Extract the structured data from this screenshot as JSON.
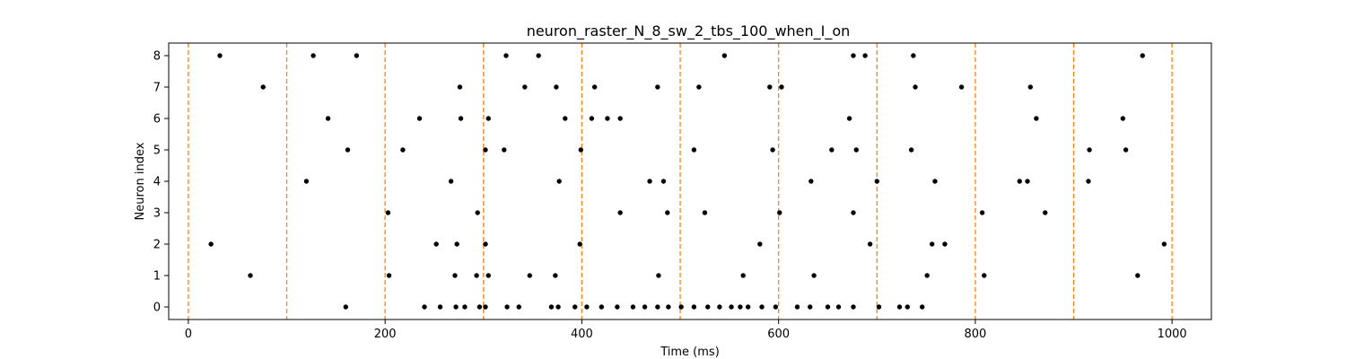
{
  "chart_data": {
    "type": "scatter",
    "title": "neuron_raster_N_8_sw_2_tbs_100_when_I_on",
    "xlabel": "Time (ms)",
    "ylabel": "Neuron index",
    "xlim": [
      -20,
      1040
    ],
    "ylim": [
      -0.4,
      8.4
    ],
    "xticks": [
      0,
      200,
      400,
      600,
      800,
      1000
    ],
    "yticks": [
      0,
      1,
      2,
      3,
      4,
      5,
      6,
      7,
      8
    ],
    "grid": false,
    "marker_color": "#000000",
    "vline_color": "#ff7f0e",
    "vlines": [
      0,
      100,
      200,
      300,
      400,
      500,
      600,
      700,
      800,
      900,
      1000
    ],
    "series": [
      {
        "values": [
          {
            "x": 160,
            "y": 0
          },
          {
            "x": 240,
            "y": 0
          },
          {
            "x": 256,
            "y": 0
          },
          {
            "x": 272,
            "y": 0
          },
          {
            "x": 281,
            "y": 0
          },
          {
            "x": 296,
            "y": 0
          },
          {
            "x": 302,
            "y": 0
          },
          {
            "x": 324,
            "y": 0
          },
          {
            "x": 336,
            "y": 0
          },
          {
            "x": 369,
            "y": 0
          },
          {
            "x": 376,
            "y": 0
          },
          {
            "x": 393,
            "y": 0
          },
          {
            "x": 405,
            "y": 0
          },
          {
            "x": 420,
            "y": 0
          },
          {
            "x": 436,
            "y": 0
          },
          {
            "x": 452,
            "y": 0
          },
          {
            "x": 464,
            "y": 0
          },
          {
            "x": 477,
            "y": 0
          },
          {
            "x": 488,
            "y": 0
          },
          {
            "x": 501,
            "y": 0
          },
          {
            "x": 514,
            "y": 0
          },
          {
            "x": 528,
            "y": 0
          },
          {
            "x": 540,
            "y": 0
          },
          {
            "x": 552,
            "y": 0
          },
          {
            "x": 561,
            "y": 0
          },
          {
            "x": 569,
            "y": 0
          },
          {
            "x": 583,
            "y": 0
          },
          {
            "x": 597,
            "y": 0
          },
          {
            "x": 619,
            "y": 0
          },
          {
            "x": 632,
            "y": 0
          },
          {
            "x": 650,
            "y": 0
          },
          {
            "x": 661,
            "y": 0
          },
          {
            "x": 676,
            "y": 0
          },
          {
            "x": 702,
            "y": 0
          },
          {
            "x": 723,
            "y": 0
          },
          {
            "x": 731,
            "y": 0
          },
          {
            "x": 746,
            "y": 0
          },
          {
            "x": 63,
            "y": 1
          },
          {
            "x": 204,
            "y": 1
          },
          {
            "x": 271,
            "y": 1
          },
          {
            "x": 293,
            "y": 1
          },
          {
            "x": 305,
            "y": 1
          },
          {
            "x": 347,
            "y": 1
          },
          {
            "x": 373,
            "y": 1
          },
          {
            "x": 478,
            "y": 1
          },
          {
            "x": 564,
            "y": 1
          },
          {
            "x": 636,
            "y": 1
          },
          {
            "x": 751,
            "y": 1
          },
          {
            "x": 809,
            "y": 1
          },
          {
            "x": 965,
            "y": 1
          },
          {
            "x": 23,
            "y": 2
          },
          {
            "x": 252,
            "y": 2
          },
          {
            "x": 273,
            "y": 2
          },
          {
            "x": 302,
            "y": 2
          },
          {
            "x": 398,
            "y": 2
          },
          {
            "x": 581,
            "y": 2
          },
          {
            "x": 693,
            "y": 2
          },
          {
            "x": 756,
            "y": 2
          },
          {
            "x": 769,
            "y": 2
          },
          {
            "x": 992,
            "y": 2
          },
          {
            "x": 203,
            "y": 3
          },
          {
            "x": 294,
            "y": 3
          },
          {
            "x": 439,
            "y": 3
          },
          {
            "x": 487,
            "y": 3
          },
          {
            "x": 525,
            "y": 3
          },
          {
            "x": 601,
            "y": 3
          },
          {
            "x": 676,
            "y": 3
          },
          {
            "x": 807,
            "y": 3
          },
          {
            "x": 871,
            "y": 3
          },
          {
            "x": 120,
            "y": 4
          },
          {
            "x": 267,
            "y": 4
          },
          {
            "x": 377,
            "y": 4
          },
          {
            "x": 469,
            "y": 4
          },
          {
            "x": 483,
            "y": 4
          },
          {
            "x": 633,
            "y": 4
          },
          {
            "x": 700,
            "y": 4
          },
          {
            "x": 759,
            "y": 4
          },
          {
            "x": 845,
            "y": 4
          },
          {
            "x": 853,
            "y": 4
          },
          {
            "x": 915,
            "y": 4
          },
          {
            "x": 162,
            "y": 5
          },
          {
            "x": 218,
            "y": 5
          },
          {
            "x": 302,
            "y": 5
          },
          {
            "x": 321,
            "y": 5
          },
          {
            "x": 399,
            "y": 5
          },
          {
            "x": 514,
            "y": 5
          },
          {
            "x": 594,
            "y": 5
          },
          {
            "x": 654,
            "y": 5
          },
          {
            "x": 679,
            "y": 5
          },
          {
            "x": 735,
            "y": 5
          },
          {
            "x": 916,
            "y": 5
          },
          {
            "x": 953,
            "y": 5
          },
          {
            "x": 142,
            "y": 6
          },
          {
            "x": 235,
            "y": 6
          },
          {
            "x": 277,
            "y": 6
          },
          {
            "x": 305,
            "y": 6
          },
          {
            "x": 383,
            "y": 6
          },
          {
            "x": 410,
            "y": 6
          },
          {
            "x": 426,
            "y": 6
          },
          {
            "x": 439,
            "y": 6
          },
          {
            "x": 672,
            "y": 6
          },
          {
            "x": 862,
            "y": 6
          },
          {
            "x": 950,
            "y": 6
          },
          {
            "x": 76,
            "y": 7
          },
          {
            "x": 276,
            "y": 7
          },
          {
            "x": 342,
            "y": 7
          },
          {
            "x": 374,
            "y": 7
          },
          {
            "x": 413,
            "y": 7
          },
          {
            "x": 477,
            "y": 7
          },
          {
            "x": 519,
            "y": 7
          },
          {
            "x": 591,
            "y": 7
          },
          {
            "x": 603,
            "y": 7
          },
          {
            "x": 739,
            "y": 7
          },
          {
            "x": 786,
            "y": 7
          },
          {
            "x": 856,
            "y": 7
          },
          {
            "x": 32,
            "y": 8
          },
          {
            "x": 127,
            "y": 8
          },
          {
            "x": 171,
            "y": 8
          },
          {
            "x": 323,
            "y": 8
          },
          {
            "x": 356,
            "y": 8
          },
          {
            "x": 545,
            "y": 8
          },
          {
            "x": 676,
            "y": 8
          },
          {
            "x": 688,
            "y": 8
          },
          {
            "x": 737,
            "y": 8
          },
          {
            "x": 970,
            "y": 8
          }
        ]
      }
    ]
  }
}
